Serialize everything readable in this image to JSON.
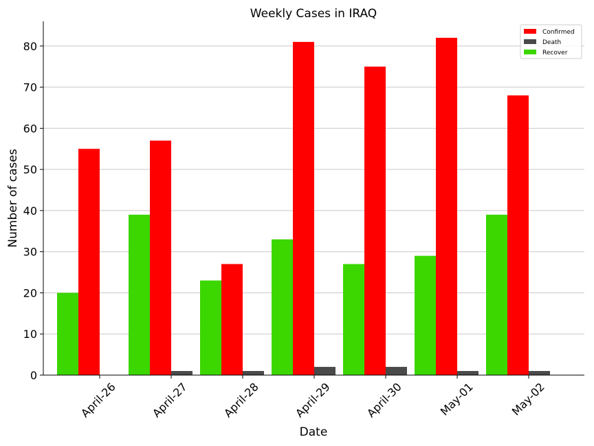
{
  "chart_data": {
    "type": "bar",
    "title": "Weekly Cases in IRAQ",
    "xlabel": "Date",
    "ylabel": "Number of cases",
    "categories": [
      "April-26",
      "April-27",
      "April-28",
      "April-29",
      "April-30",
      "May-01",
      "May-02"
    ],
    "ylim": [
      0,
      86
    ],
    "yticks": [
      0,
      10,
      20,
      30,
      40,
      50,
      60,
      70,
      80
    ],
    "grid": "horizontal",
    "legend_position": "top-right",
    "series": [
      {
        "name": "Recover",
        "color": "#3cd600",
        "values": [
          20,
          39,
          23,
          33,
          27,
          29,
          39
        ]
      },
      {
        "name": "Confirmed",
        "color": "#ff0000",
        "values": [
          55,
          57,
          27,
          81,
          75,
          82,
          68
        ]
      },
      {
        "name": "Death",
        "color": "#4a4a4a",
        "values": [
          0,
          1,
          1,
          2,
          2,
          1,
          1
        ]
      }
    ],
    "legend_order": [
      "Confirmed",
      "Death",
      "Recover"
    ]
  }
}
